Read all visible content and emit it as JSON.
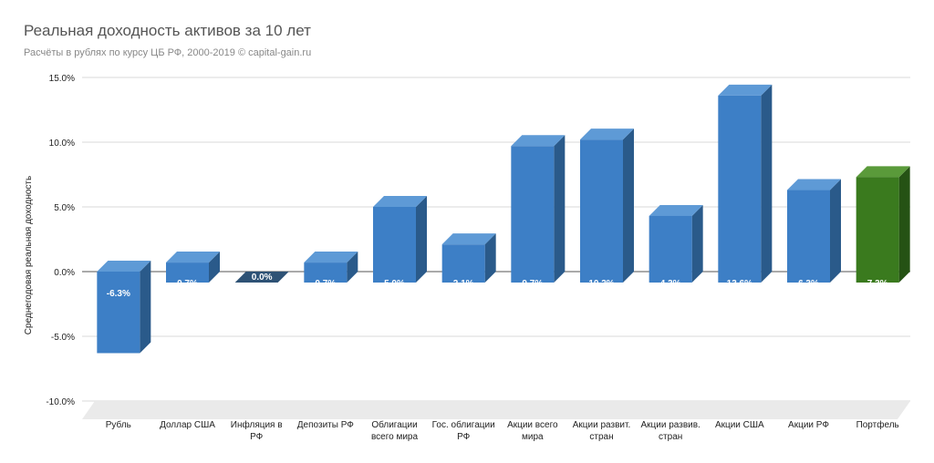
{
  "chart_data": {
    "type": "bar",
    "title": "Реальная доходность активов за 10 лет",
    "subtitle": "Расчёты в рублях по курсу ЦБ РФ, 2000-2019 © capital-gain.ru",
    "xlabel": "",
    "ylabel": "Среднегодовая реальная доходность",
    "ylim": [
      -10,
      15
    ],
    "yticks": [
      15,
      10,
      5,
      0,
      -5,
      -10
    ],
    "ytick_labels": [
      "15.0%",
      "10.0%",
      "5.0%",
      "0.0%",
      "-5.0%",
      "-10.0%"
    ],
    "grid": true,
    "categories": [
      [
        "Рубль"
      ],
      [
        "Доллар США"
      ],
      [
        "Инфляция в",
        "РФ"
      ],
      [
        "Депозиты РФ"
      ],
      [
        "Облигации",
        "всего мира"
      ],
      [
        "Гос. облигации",
        "РФ"
      ],
      [
        "Акции всего",
        "мира"
      ],
      [
        "Акции развит.",
        "стран"
      ],
      [
        "Акции развив.",
        "стран"
      ],
      [
        "Акции США"
      ],
      [
        "Акции РФ"
      ],
      [
        "Портфель"
      ]
    ],
    "values": [
      -6.3,
      0.7,
      0.0,
      0.7,
      5.0,
      2.1,
      9.7,
      10.2,
      4.3,
      13.6,
      6.3,
      7.3
    ],
    "value_labels": [
      "-6.3%",
      "0.7%",
      "0.0%",
      "0.7%",
      "5.0%",
      "2.1%",
      "9.7%",
      "10.2%",
      "4.3%",
      "13.6%",
      "6.3%",
      "7.3%"
    ],
    "colors": {
      "bar": "#3d7fc6",
      "bar_top": "#5e9ad6",
      "bar_side": "#2a5a8a",
      "highlight": "#3a7a1e",
      "highlight_top": "#5a9a3a",
      "highlight_side": "#255214",
      "zero_bar": "#2e5275",
      "grid": "#d9d9d9",
      "floor": "#eaeaea"
    },
    "highlight_index": 11
  }
}
